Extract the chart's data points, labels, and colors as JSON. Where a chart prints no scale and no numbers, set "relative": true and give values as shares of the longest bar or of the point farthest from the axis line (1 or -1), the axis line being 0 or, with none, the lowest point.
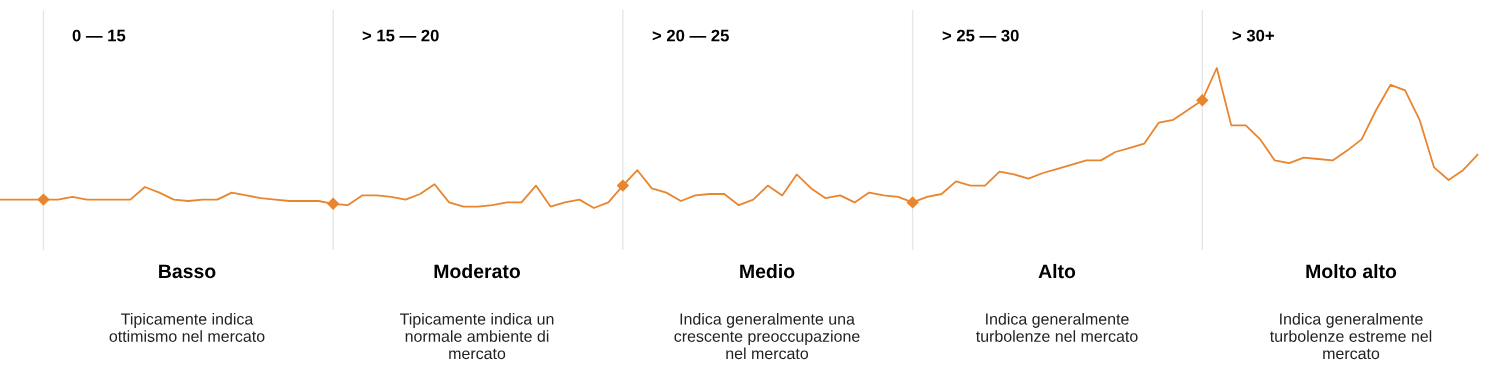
{
  "chart_data": {
    "type": "line",
    "relative": true,
    "grid": "x",
    "categories": [
      null,
      null,
      null,
      null,
      null,
      null,
      null,
      null,
      null,
      null,
      null,
      null,
      null,
      null,
      null,
      null,
      null,
      null,
      null,
      null,
      null,
      null,
      null,
      null,
      null,
      null,
      null,
      null,
      null,
      null,
      null,
      null,
      null,
      null,
      null,
      null,
      null,
      null,
      null,
      null,
      null,
      null,
      null,
      null,
      null,
      null,
      null,
      null,
      null,
      null,
      null,
      null,
      null,
      null,
      null,
      null,
      null,
      null,
      null,
      null,
      null,
      null,
      null,
      null,
      null,
      null,
      null,
      null,
      null,
      null,
      null,
      null,
      null,
      null,
      null,
      null,
      null,
      null,
      null,
      null,
      null,
      null,
      null,
      null,
      null,
      null,
      null,
      null,
      null,
      null,
      null,
      null,
      null,
      null,
      null,
      null,
      null,
      null,
      null,
      null,
      null,
      null,
      null
    ],
    "series": [
      {
        "color": "#e8862f",
        "values": [
          0.06,
          0.06,
          0.06,
          0.06,
          0.06,
          0.08,
          0.06,
          0.06,
          0.06,
          0.06,
          0.15,
          0.11,
          0.06,
          0.05,
          0.06,
          0.06,
          0.11,
          0.09,
          0.07,
          0.06,
          0.05,
          0.05,
          0.05,
          0.03,
          0.02,
          0.09,
          0.09,
          0.08,
          0.06,
          0.1,
          0.17,
          0.04,
          0.01,
          0.01,
          0.02,
          0.04,
          0.04,
          0.16,
          0.01,
          0.04,
          0.06,
          0.0,
          0.04,
          0.16,
          0.27,
          0.14,
          0.11,
          0.05,
          0.09,
          0.1,
          0.1,
          0.02,
          0.06,
          0.16,
          0.09,
          0.24,
          0.14,
          0.07,
          0.09,
          0.04,
          0.11,
          0.09,
          0.08,
          0.04,
          0.08,
          0.1,
          0.19,
          0.16,
          0.16,
          0.26,
          0.24,
          0.21,
          0.25,
          0.28,
          0.31,
          0.34,
          0.34,
          0.4,
          0.43,
          0.46,
          0.61,
          0.63,
          0.7,
          0.77,
          1.0,
          0.59,
          0.59,
          0.49,
          0.34,
          0.32,
          0.36,
          0.35,
          0.34,
          0.41,
          0.49,
          0.7,
          0.88,
          0.84,
          0.63,
          0.29,
          0.2,
          0.27,
          0.38
        ]
      }
    ],
    "annotations": [
      "0 — 15",
      "Basso",
      "Tipicamente indica\nottimismo nel mercato",
      "> 15 — 20",
      "Moderato",
      "Tipicamente indica un\nnormale ambiente di\nmercato",
      "> 20 — 25",
      "Medio",
      "Indica generalmente una\ncrescente preoccupazione\nnel mercato",
      "> 25 — 30",
      "Alto",
      "Indica generalmente\nturbolenze nel mercato",
      "> 30+",
      "Molto alto",
      "Indica generalmente\nturbolenze estreme nel\nmercato"
    ]
  }
}
